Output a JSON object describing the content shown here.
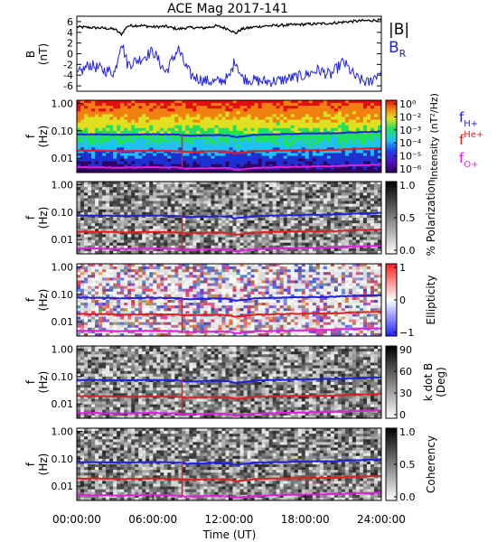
{
  "title": "ACE Mag 2017-141",
  "time_axis": {
    "label": "Time (UT)",
    "ticks": [
      "00:00:00",
      "06:00:00",
      "12:00:00",
      "18:00:00",
      "24:00:00"
    ],
    "range_hours": [
      0,
      24
    ]
  },
  "legend_b": {
    "total": "|B|",
    "radial": "B",
    "radial_sub": "R",
    "total_color": "#000000",
    "radial_color": "#2020e0"
  },
  "legend_freq": [
    {
      "base": "f",
      "sub": "H+",
      "color": "#2020e0"
    },
    {
      "base": "f",
      "sup": "He+",
      "color": "#e02020"
    },
    {
      "base": "f",
      "sub": "O+",
      "color": "#e020e0"
    }
  ],
  "chart_data": [
    {
      "type": "line",
      "panel": "field",
      "ylabel": "B (nT)",
      "ylabel_main": "B",
      "ylabel_unit": "(nT)",
      "ylim": [
        -7,
        7
      ],
      "yticks": [
        "6",
        "4",
        "2",
        "0",
        "-2",
        "-4",
        "-6"
      ],
      "yticks_values": [
        6,
        4,
        2,
        0,
        -2,
        -4,
        -6
      ],
      "x_hours": [
        0,
        1,
        2,
        3,
        3.5,
        4,
        5,
        6,
        7,
        8,
        8.5,
        9,
        10,
        11,
        12,
        12.5,
        13,
        14,
        15,
        16,
        17,
        18,
        19,
        20,
        21,
        22,
        23,
        24
      ],
      "series": [
        {
          "name": "|B|",
          "values": [
            5.0,
            4.9,
            4.8,
            4.6,
            3.6,
            5.2,
            5.3,
            5.0,
            5.1,
            4.6,
            4.8,
            4.9,
            4.8,
            5.2,
            4.6,
            3.8,
            4.6,
            5.0,
            5.2,
            5.3,
            5.4,
            5.5,
            5.6,
            5.7,
            5.9,
            6.1,
            6.2,
            6.3
          ]
        },
        {
          "name": "B_R",
          "values": [
            -4.0,
            -2.0,
            -3.0,
            -3.5,
            2.5,
            -2.0,
            -1.0,
            0.5,
            -3.5,
            1.0,
            -2.0,
            -4.0,
            -5.0,
            -5.3,
            -4.5,
            -1.0,
            -4.5,
            -5.0,
            -5.2,
            -5.0,
            -4.5,
            -4.0,
            -3.0,
            -4.0,
            -1.5,
            -4.5,
            -5.5,
            -3.0
          ]
        }
      ]
    },
    {
      "type": "heatmap",
      "panel": "intensity",
      "ylabel": "f (Hz)",
      "yticks": [
        "1.00",
        "0.10",
        "0.01"
      ],
      "colorbar_label": "Intensity (nT²/Hz)",
      "colorbar_ticks": [
        "10⁰",
        "10⁻²",
        "10⁻³",
        "10⁻⁴",
        "10⁻⁵",
        "10⁻⁶"
      ],
      "colorscale": [
        "#300060",
        "#2030d0",
        "#20c0f0",
        "#20e060",
        "#e0e020",
        "#f08010",
        "#e01010"
      ],
      "x_hours": [
        0,
        2,
        3.5,
        6,
        8,
        8.5,
        11,
        12,
        12.5,
        14,
        16,
        18,
        20,
        22,
        24
      ],
      "lines": [
        {
          "name": "fH+",
          "f_hz": [
            0.075,
            0.074,
            0.072,
            0.075,
            0.072,
            0.066,
            0.07,
            0.068,
            0.058,
            0.071,
            0.075,
            0.079,
            0.081,
            0.088,
            0.093
          ]
        },
        {
          "name": "fHe+",
          "f_hz": [
            0.019,
            0.019,
            0.018,
            0.019,
            0.018,
            0.017,
            0.018,
            0.017,
            0.015,
            0.018,
            0.019,
            0.02,
            0.02,
            0.022,
            0.023
          ]
        },
        {
          "name": "fO+",
          "f_hz": [
            0.0047,
            0.0046,
            0.0045,
            0.0047,
            0.0045,
            0.0042,
            0.0044,
            0.0043,
            0.0037,
            0.0044,
            0.0047,
            0.0049,
            0.0051,
            0.0055,
            0.0058
          ]
        }
      ]
    },
    {
      "type": "heatmap",
      "panel": "polarization",
      "ylabel": "f (Hz)",
      "yticks": [
        "1.00",
        "0.10",
        "0.01"
      ],
      "colorbar_label": "% Polarization",
      "colorbar_ticks": [
        "1.0",
        "0.5",
        "0.0"
      ],
      "colorscale": [
        "#ffffff",
        "#000000"
      ]
    },
    {
      "type": "heatmap",
      "panel": "ellipticity",
      "ylabel": "f (Hz)",
      "yticks": [
        "1.00",
        "0.10",
        "0.01"
      ],
      "colorbar_label": "Ellipticity",
      "colorbar_ticks": [
        "1",
        "0",
        "−1"
      ],
      "colorscale": [
        "#2020ff",
        "#ffffff",
        "#ff2020"
      ]
    },
    {
      "type": "heatmap",
      "panel": "kdotb",
      "ylabel": "f (Hz)",
      "yticks": [
        "1.00",
        "0.10",
        "0.01"
      ],
      "colorbar_label": "k dot B (Deg)",
      "colorbar_label_line1": "k dot B",
      "colorbar_label_line2": "(Deg)",
      "colorbar_ticks": [
        "90",
        "60",
        "30",
        "0"
      ],
      "colorscale": [
        "#ffffff",
        "#000000"
      ]
    },
    {
      "type": "heatmap",
      "panel": "coherency",
      "ylabel": "f (Hz)",
      "yticks": [
        "1.00",
        "0.10",
        "0.01"
      ],
      "colorbar_label": "Coherency",
      "colorbar_ticks": [
        "1.0",
        "0.5",
        "0.0"
      ],
      "colorscale": [
        "#ffffff",
        "#000000"
      ]
    }
  ]
}
